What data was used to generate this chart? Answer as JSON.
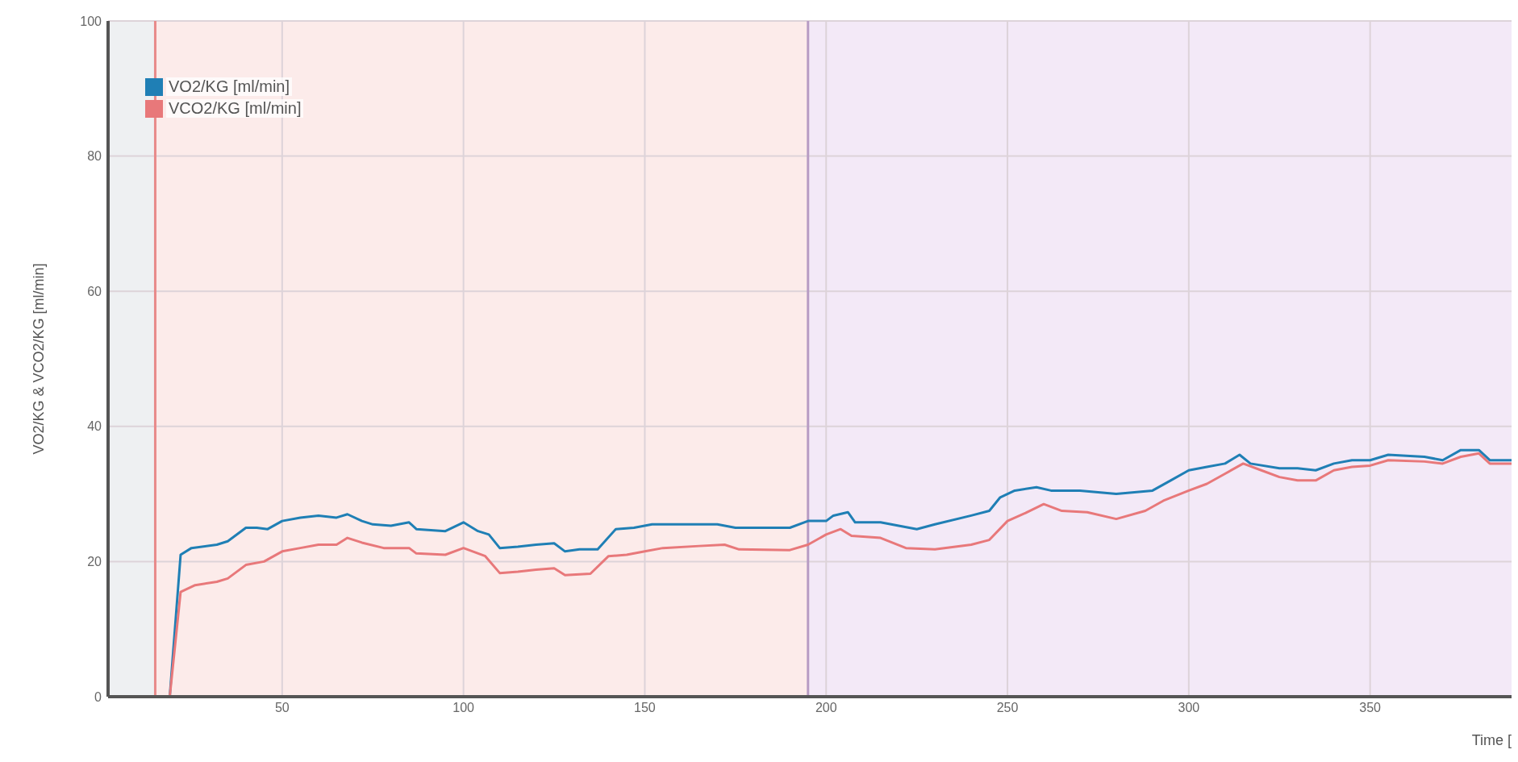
{
  "chart_data": {
    "type": "line",
    "xlabel": "Time [",
    "ylabel": "VO2/KG & VCO2/KG [ml/min]",
    "xlim": [
      2,
      389
    ],
    "xticks": [
      50,
      100,
      150,
      200,
      250,
      300,
      350
    ],
    "ylim": [
      0,
      100
    ],
    "yticks": [
      0,
      20,
      40,
      60,
      80,
      100
    ],
    "grid": true,
    "legend": "top left",
    "marker": "none",
    "line_style": "solid",
    "bands": [
      {
        "axis": "x",
        "from": 2,
        "to": 15,
        "color": "#eef0f2"
      },
      {
        "axis": "x",
        "from": 15,
        "to": 195,
        "color": "#fcebea"
      },
      {
        "axis": "x",
        "from": 195,
        "to": 389,
        "color": "#f3e9f7"
      }
    ],
    "ref_lines": [
      {
        "axis": "x",
        "value": 15,
        "color": "#e88a8a"
      },
      {
        "axis": "x",
        "value": 195,
        "color": "#b89cc4"
      }
    ],
    "series": [
      {
        "name": "VO2/KG [ml/min]",
        "color": "#1f7fb5",
        "x": [
          2,
          19,
          22,
          25,
          32,
          35,
          40,
          43,
          46,
          50,
          55,
          60,
          65,
          68,
          72,
          75,
          80,
          85,
          87,
          95,
          100,
          104,
          107,
          110,
          115,
          120,
          125,
          128,
          132,
          137,
          142,
          147,
          152,
          160,
          170,
          175,
          180,
          190,
          195,
          200,
          202,
          206,
          208,
          215,
          225,
          230,
          240,
          245,
          248,
          252,
          258,
          262,
          270,
          280,
          290,
          295,
          300,
          305,
          310,
          314,
          317,
          325,
          330,
          335,
          340,
          345,
          350,
          355,
          365,
          370,
          375,
          380,
          383,
          389
        ],
        "values": [
          0,
          0,
          21,
          22,
          22.5,
          23,
          25,
          25,
          24.8,
          26,
          26.5,
          26.8,
          26.5,
          27,
          26,
          25.5,
          25.3,
          25.8,
          24.8,
          24.5,
          25.8,
          24.5,
          24,
          22,
          22.2,
          22.5,
          22.7,
          21.5,
          21.8,
          21.8,
          24.8,
          25,
          25.5,
          25.5,
          25.5,
          25,
          25,
          25,
          26,
          26,
          26.8,
          27.3,
          25.8,
          25.8,
          24.8,
          25.5,
          26.8,
          27.5,
          29.5,
          30.5,
          31,
          30.5,
          30.5,
          30,
          30.5,
          32,
          33.5,
          34,
          34.5,
          35.8,
          34.5,
          33.8,
          33.8,
          33.5,
          34.5,
          35,
          35,
          35.8,
          35.5,
          35,
          36.5,
          36.5,
          35,
          35
        ]
      },
      {
        "name": "VCO2/KG [ml/min]",
        "color": "#e8787a",
        "x": [
          2,
          19,
          22,
          26,
          32,
          35,
          40,
          45,
          50,
          55,
          60,
          65,
          68,
          72,
          78,
          85,
          87,
          95,
          100,
          106,
          110,
          115,
          120,
          125,
          128,
          135,
          140,
          145,
          150,
          155,
          165,
          172,
          176,
          190,
          195,
          200,
          204,
          207,
          215,
          222,
          230,
          240,
          245,
          250,
          255,
          260,
          265,
          272,
          280,
          288,
          293,
          300,
          305,
          310,
          315,
          320,
          325,
          330,
          335,
          340,
          345,
          350,
          355,
          365,
          370,
          375,
          380,
          383,
          389
        ],
        "values": [
          0,
          0,
          15.5,
          16.5,
          17,
          17.5,
          19.5,
          20,
          21.5,
          22,
          22.5,
          22.5,
          23.5,
          22.8,
          22,
          22,
          21.2,
          21,
          22,
          20.8,
          18.3,
          18.5,
          18.8,
          19,
          18,
          18.2,
          20.8,
          21,
          21.5,
          22,
          22.3,
          22.5,
          21.8,
          21.7,
          22.5,
          24,
          24.8,
          23.8,
          23.5,
          22,
          21.8,
          22.5,
          23.2,
          26,
          27.2,
          28.5,
          27.5,
          27.3,
          26.3,
          27.5,
          29,
          30.5,
          31.5,
          33,
          34.5,
          33.5,
          32.5,
          32,
          32,
          33.5,
          34,
          34.2,
          35,
          34.8,
          34.5,
          35.5,
          36,
          34.5,
          34.5
        ]
      }
    ]
  }
}
